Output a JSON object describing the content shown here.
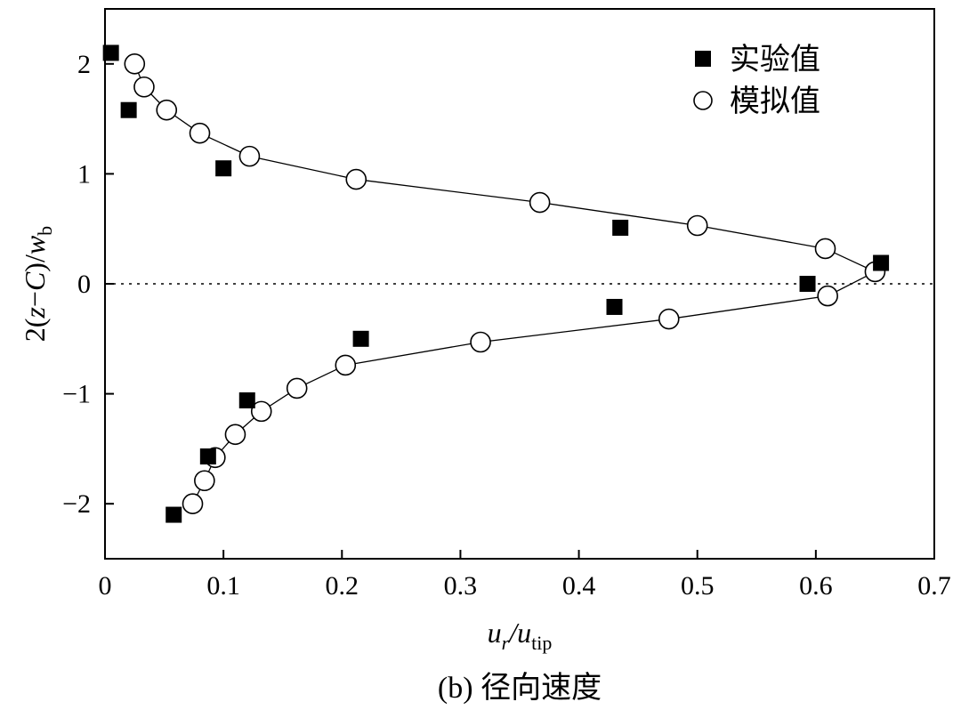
{
  "chart_data": {
    "type": "scatter",
    "title": "",
    "caption": "(b) 径向速度",
    "xlabel": {
      "main": "u",
      "sub1": "r",
      "mid": "/u",
      "sub2": "tip"
    },
    "ylabel": {
      "pre": "2(",
      "z": "z",
      "mid": "−",
      "c": "C",
      "post": ")/",
      "w": "w",
      "sub": "b"
    },
    "xlim": [
      0,
      0.7
    ],
    "ylim": [
      -2.5,
      2.5
    ],
    "xticks": [
      0,
      0.1,
      0.2,
      0.3,
      0.4,
      0.5,
      0.6,
      0.7
    ],
    "xtick_labels": [
      "0",
      "0.1",
      "0.2",
      "0.3",
      "0.4",
      "0.5",
      "0.6",
      "0.7"
    ],
    "yticks": [
      2,
      1,
      0,
      -1,
      -2
    ],
    "ytick_labels": [
      "2",
      "1",
      "0",
      "−1",
      "−2"
    ],
    "reference_line": {
      "y": 0,
      "style": "dotted"
    },
    "series": [
      {
        "name": "实验值",
        "marker": "filled-square",
        "points": [
          [
            0.005,
            2.1
          ],
          [
            0.02,
            1.58
          ],
          [
            0.1,
            1.05
          ],
          [
            0.435,
            0.51
          ],
          [
            0.655,
            0.19
          ],
          [
            0.593,
            0.0
          ],
          [
            0.43,
            -0.21
          ],
          [
            0.216,
            -0.5
          ],
          [
            0.12,
            -1.06
          ],
          [
            0.087,
            -1.57
          ],
          [
            0.058,
            -2.1
          ]
        ]
      },
      {
        "name": "模拟值",
        "marker": "open-circle-line",
        "points": [
          [
            0.025,
            2.0
          ],
          [
            0.033,
            1.79
          ],
          [
            0.052,
            1.58
          ],
          [
            0.08,
            1.37
          ],
          [
            0.122,
            1.16
          ],
          [
            0.212,
            0.95
          ],
          [
            0.367,
            0.74
          ],
          [
            0.5,
            0.53
          ],
          [
            0.608,
            0.32
          ],
          [
            0.65,
            0.11
          ],
          [
            0.61,
            -0.11
          ],
          [
            0.476,
            -0.32
          ],
          [
            0.317,
            -0.53
          ],
          [
            0.203,
            -0.74
          ],
          [
            0.162,
            -0.95
          ],
          [
            0.132,
            -1.16
          ],
          [
            0.11,
            -1.37
          ],
          [
            0.093,
            -1.58
          ],
          [
            0.084,
            -1.79
          ],
          [
            0.074,
            -2.0
          ]
        ]
      }
    ]
  }
}
